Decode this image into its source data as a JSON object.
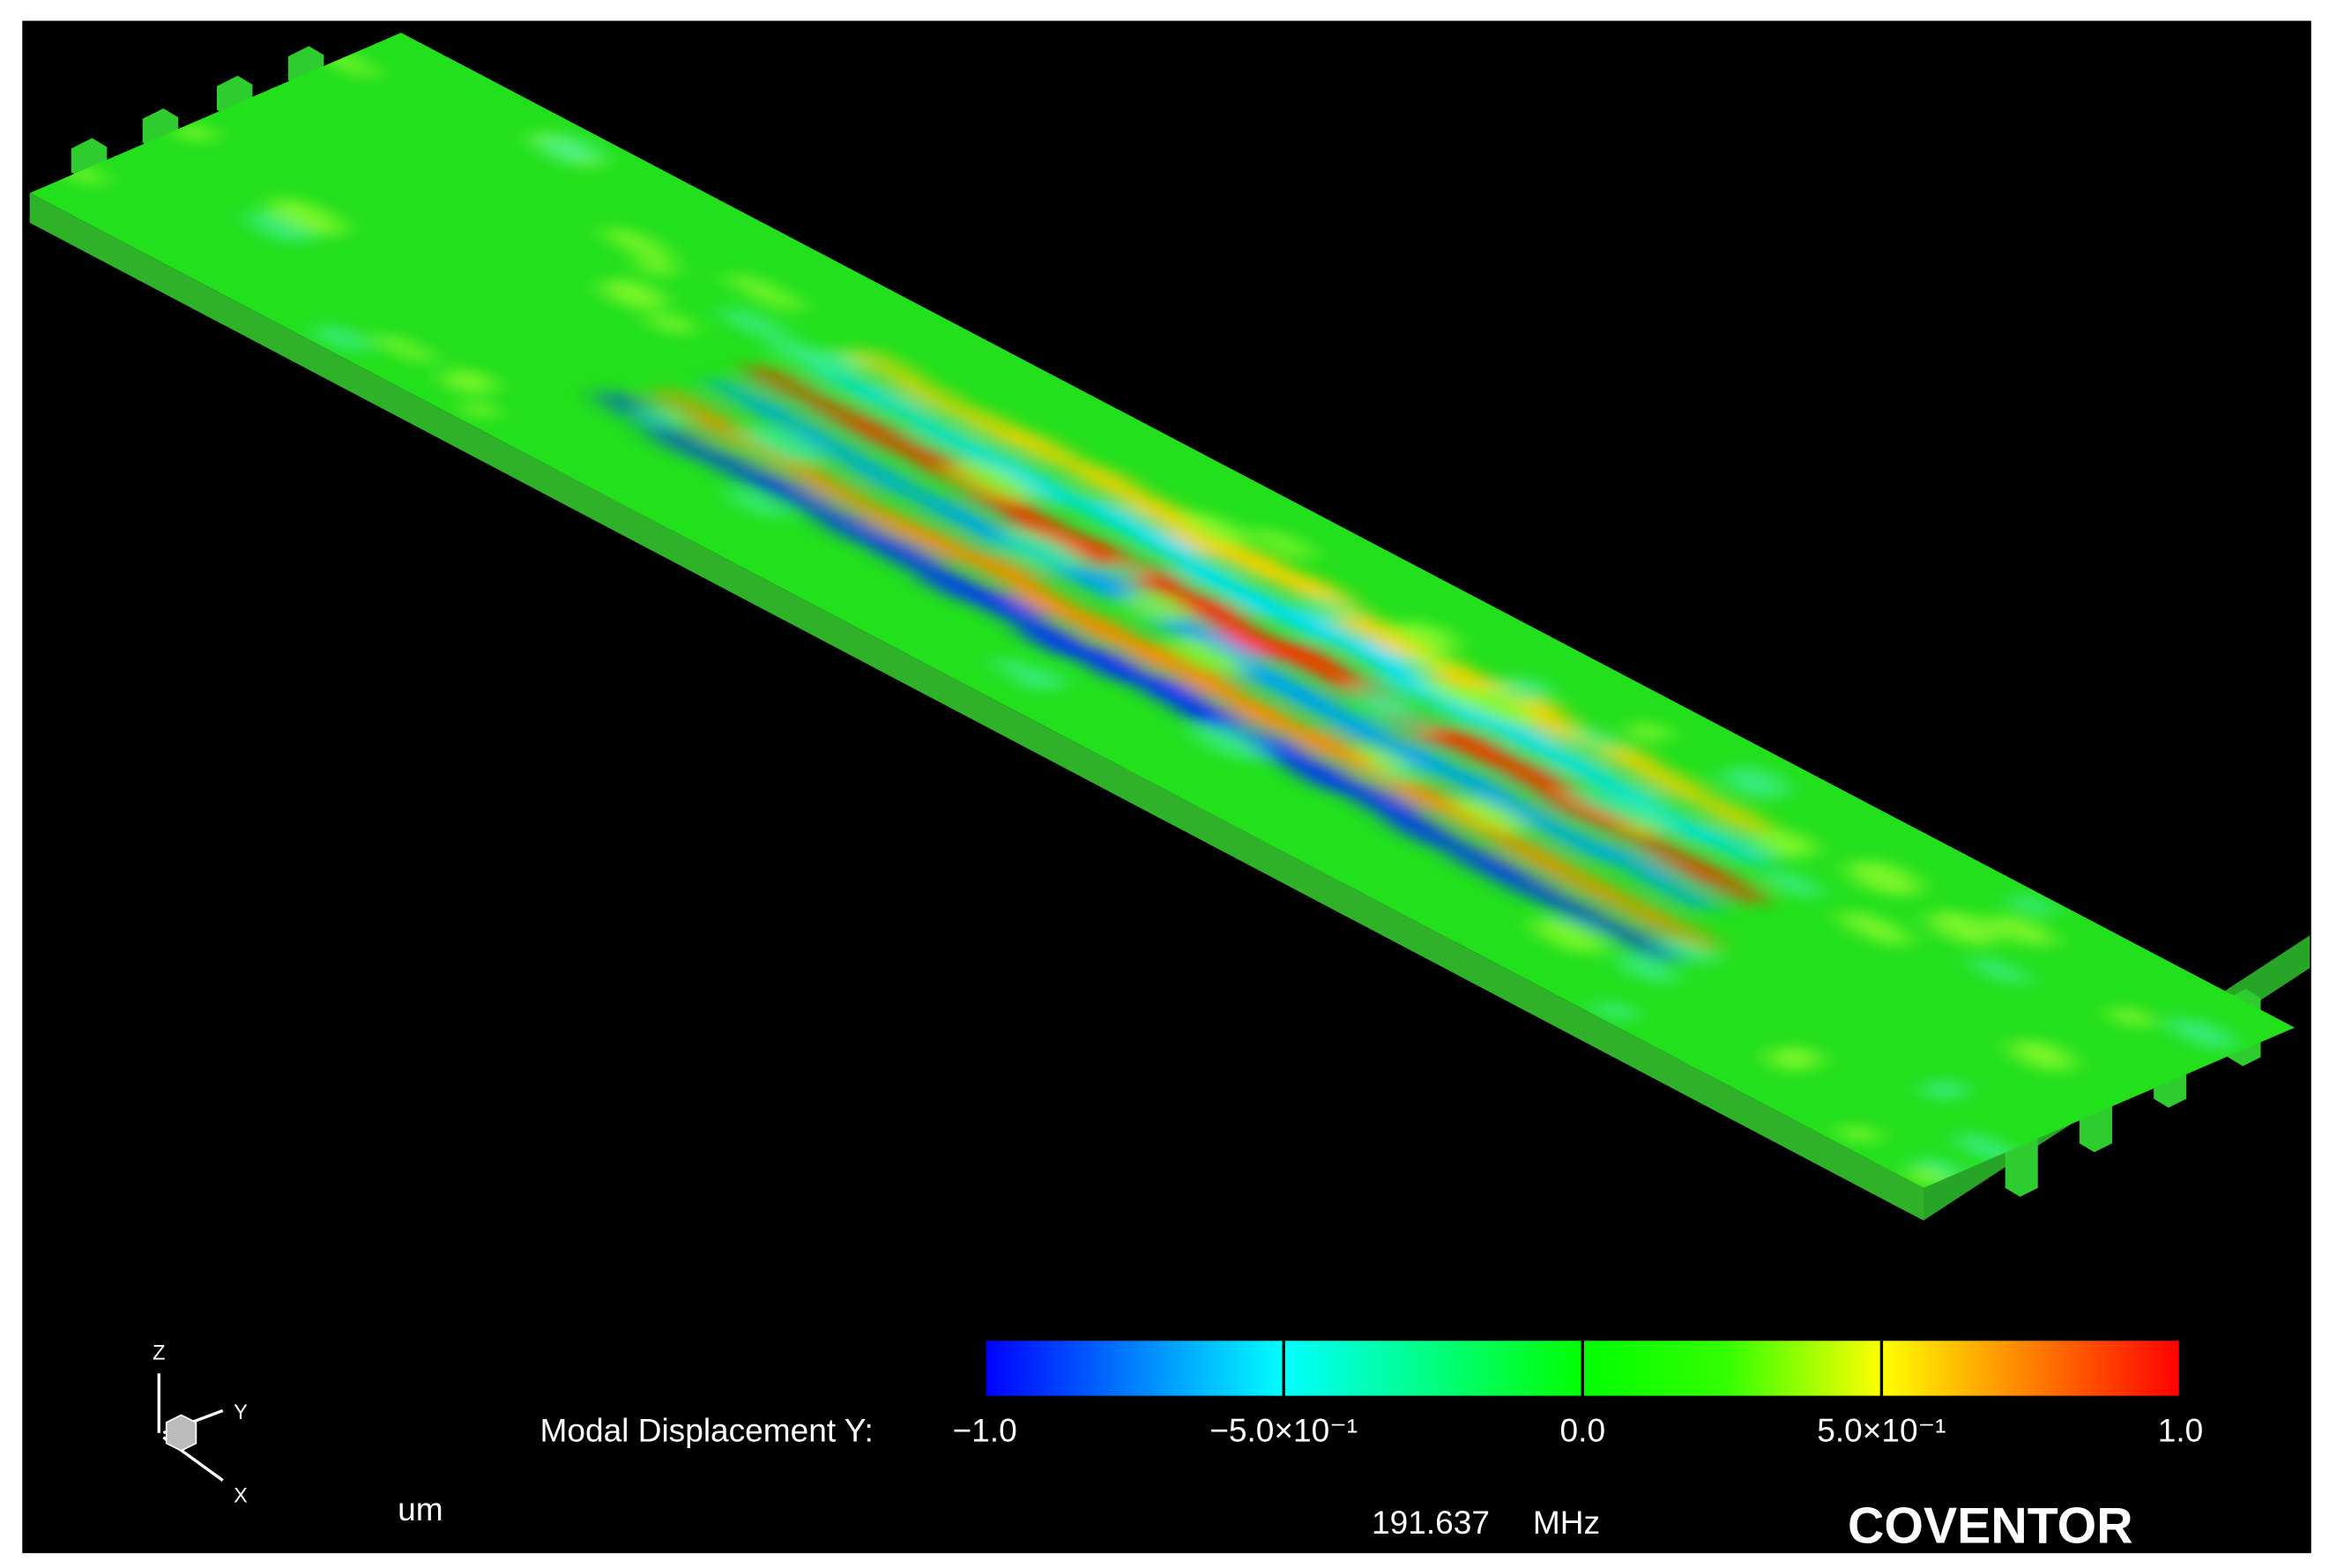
{
  "triad": {
    "z": "Z",
    "y": "Y",
    "x": "X"
  },
  "colorbar": {
    "title": "Modal Displacement Y:",
    "lim": [
      -1,
      1
    ],
    "ticks": [
      {
        "value": -1,
        "label": "−1.0"
      },
      {
        "value": -0.5,
        "label": "−5.0×10⁻¹"
      },
      {
        "value": 0,
        "label": "0.0"
      },
      {
        "value": 0.5,
        "label": "5.0×10⁻¹"
      },
      {
        "value": 1,
        "label": "1.0"
      }
    ]
  },
  "units": "um",
  "frequency": "191.637",
  "frequency_unit": "MHz",
  "brand": "COVENTOR"
}
